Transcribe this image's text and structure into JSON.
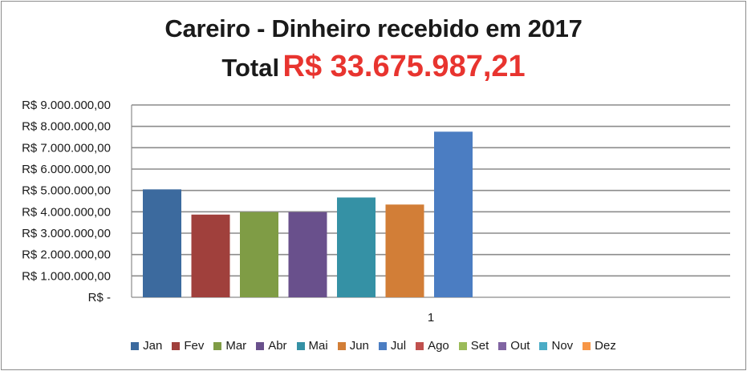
{
  "title": "Careiro - Dinheiro recebido em 2017",
  "total_label": "Total",
  "total_value": "R$ 33.675.987,21",
  "chart_data": {
    "type": "bar",
    "categories": [
      "1"
    ],
    "series": [
      {
        "name": "Jan",
        "color": "#3c6a9e",
        "values": [
          5050000
        ]
      },
      {
        "name": "Fev",
        "color": "#a0403c",
        "values": [
          3870000
        ]
      },
      {
        "name": "Mar",
        "color": "#7f9c45",
        "values": [
          3990000
        ]
      },
      {
        "name": "Abr",
        "color": "#69508c",
        "values": [
          3990000
        ]
      },
      {
        "name": "Mai",
        "color": "#3591a5",
        "values": [
          4670000
        ]
      },
      {
        "name": "Jun",
        "color": "#d27e37",
        "values": [
          4340000
        ]
      },
      {
        "name": "Jul",
        "color": "#4b7dc2",
        "values": [
          7750000
        ]
      },
      {
        "name": "Ago",
        "color": "#c0504d",
        "values": [
          0
        ]
      },
      {
        "name": "Set",
        "color": "#9bbb59",
        "values": [
          0
        ]
      },
      {
        "name": "Out",
        "color": "#8064a2",
        "values": [
          0
        ]
      },
      {
        "name": "Nov",
        "color": "#4bacc6",
        "values": [
          0
        ]
      },
      {
        "name": "Dez",
        "color": "#f79646",
        "values": [
          0
        ]
      }
    ],
    "ylim": [
      0,
      9000000
    ],
    "yticks": [
      "R$ -",
      "R$ 1.000.000,00",
      "R$ 2.000.000,00",
      "R$ 3.000.000,00",
      "R$ 4.000.000,00",
      "R$ 5.000.000,00",
      "R$ 6.000.000,00",
      "R$ 7.000.000,00",
      "R$ 8.000.000,00",
      "R$ 9.000.000,00"
    ],
    "grid": true,
    "legend": "bottom"
  }
}
